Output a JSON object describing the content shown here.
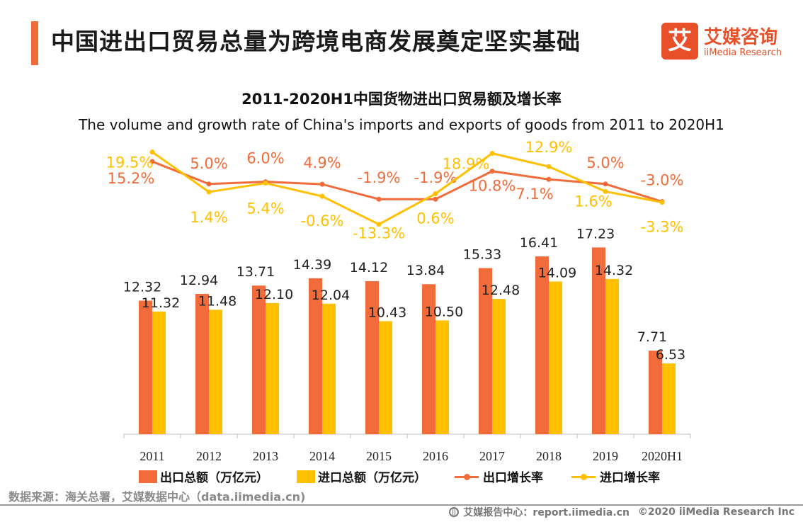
{
  "header": {
    "title": "中国进出口贸易总量为跨境电商发展奠定坚实基础",
    "accent_color": "#f26b3a"
  },
  "logo": {
    "mark": "艾",
    "name_cn": "艾媒咨询",
    "name_en": "iiMedia Research",
    "color": "#e8502a"
  },
  "chart_data": {
    "type": "bar",
    "title": "2011-2020H1中国货物进出口贸易额及增长率",
    "subtitle": "The volume and growth rate of China's imports and exports of goods from 2011 to 2020H1",
    "categories": [
      "2011",
      "2012",
      "2013",
      "2014",
      "2015",
      "2016",
      "2017",
      "2018",
      "2019",
      "2020H1"
    ],
    "series": [
      {
        "name": "出口总额（万亿元）",
        "kind": "bar",
        "color": "#f26b3a",
        "values": [
          12.32,
          12.94,
          13.71,
          14.39,
          14.12,
          13.84,
          15.33,
          16.41,
          17.23,
          7.71
        ]
      },
      {
        "name": "进口总额（万亿元）",
        "kind": "bar",
        "color": "#ffc000",
        "values": [
          11.32,
          11.48,
          12.1,
          12.04,
          10.43,
          10.5,
          12.48,
          14.09,
          14.32,
          6.53
        ]
      },
      {
        "name": "出口增长率",
        "kind": "line",
        "color": "#f26b3a",
        "values": [
          15.2,
          5.0,
          6.0,
          4.9,
          -1.9,
          -1.9,
          10.8,
          7.1,
          5.0,
          -3.0
        ],
        "labels": [
          "15.2%",
          "5.0%",
          "6.0%",
          "4.9%",
          "-1.9%",
          "-1.9%",
          "10.8%",
          "7.1%",
          "5.0%",
          "-3.0%"
        ]
      },
      {
        "name": "进口增长率",
        "kind": "line",
        "color": "#ffc000",
        "values": [
          19.5,
          1.4,
          5.4,
          -0.6,
          -13.3,
          0.6,
          18.9,
          12.9,
          1.6,
          -3.3
        ],
        "labels": [
          "19.5%",
          "1.4%",
          "5.4%",
          "-0.6%",
          "-13.3%",
          "0.6%",
          "18.9%",
          "12.9%",
          "1.6%",
          "-3.3%"
        ]
      }
    ],
    "bar_ylim": [
      0,
      20
    ],
    "line_ylim": [
      -15,
      21
    ],
    "legend_position": "bottom",
    "grid": false
  },
  "source": "数据来源：海关总署，艾媒数据中心（data.iimedia.cn)",
  "footer": {
    "report": "艾媒报告中心：report.iimedia.cn",
    "copyright": "©2020  iiMedia Research  Inc"
  }
}
